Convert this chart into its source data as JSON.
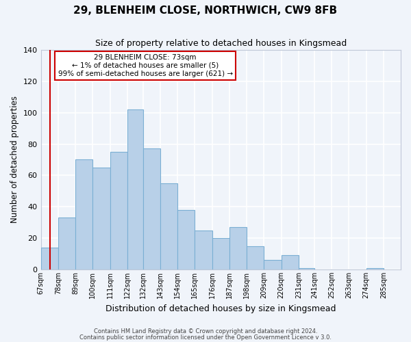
{
  "title": "29, BLENHEIM CLOSE, NORTHWICH, CW9 8FB",
  "subtitle": "Size of property relative to detached houses in Kingsmead",
  "xlabel": "Distribution of detached houses by size in Kingsmead",
  "ylabel": "Number of detached properties",
  "bar_color": "#b8d0e8",
  "bar_edge_color": "#7bafd4",
  "bin_edges": [
    67,
    78,
    89,
    100,
    111,
    122,
    132,
    143,
    154,
    165,
    176,
    187,
    198,
    209,
    220,
    231,
    241,
    252,
    263,
    274,
    285
  ],
  "bin_labels": [
    "67sqm",
    "78sqm",
    "89sqm",
    "100sqm",
    "111sqm",
    "122sqm",
    "132sqm",
    "143sqm",
    "154sqm",
    "165sqm",
    "176sqm",
    "187sqm",
    "198sqm",
    "209sqm",
    "220sqm",
    "231sqm",
    "241sqm",
    "252sqm",
    "263sqm",
    "274sqm",
    "285sqm"
  ],
  "bar_heights": [
    14,
    33,
    70,
    65,
    75,
    102,
    77,
    55,
    38,
    25,
    20,
    27,
    15,
    6,
    9,
    1,
    0,
    0,
    0,
    1
  ],
  "ylim": [
    0,
    140
  ],
  "yticks": [
    0,
    20,
    40,
    60,
    80,
    100,
    120,
    140
  ],
  "annotation_text_line1": "29 BLENHEIM CLOSE: 73sqm",
  "annotation_text_line2": "← 1% of detached houses are smaller (5)",
  "annotation_text_line3": "99% of semi-detached houses are larger (621) →",
  "property_line_x": 73,
  "footer_line1": "Contains HM Land Registry data © Crown copyright and database right 2024.",
  "footer_line2": "Contains public sector information licensed under the Open Government Licence v 3.0.",
  "background_color": "#f0f4fa",
  "grid_color": "#ffffff",
  "annotation_box_color": "#ffffff",
  "annotation_box_edge_color": "#cc0000",
  "property_line_color": "#cc0000"
}
